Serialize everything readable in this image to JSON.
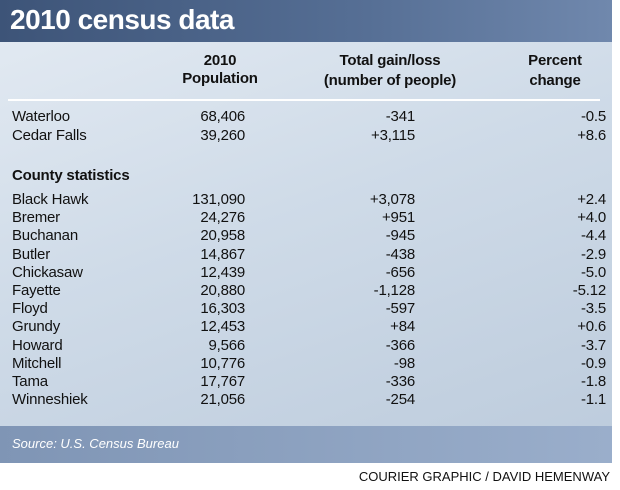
{
  "header": {
    "title": "2010 census data"
  },
  "table": {
    "columns": [
      [
        "2010",
        "Population"
      ],
      [
        "Total gain/loss",
        "(number of people)"
      ],
      [
        "Percent",
        "change"
      ]
    ],
    "city_rows": [
      [
        "Waterloo",
        "68,406",
        "-341",
        "-0.5"
      ],
      [
        "Cedar Falls",
        "39,260",
        "+3,115",
        "+8.6"
      ]
    ],
    "section_label": "County statistics",
    "county_rows": [
      [
        "Black Hawk",
        "131,090",
        "+3,078",
        "+2.4"
      ],
      [
        "Bremer",
        "24,276",
        "+951",
        "+4.0"
      ],
      [
        "Buchanan",
        "20,958",
        "-945",
        "-4.4"
      ],
      [
        "Butler",
        "14,867",
        "-438",
        "-2.9"
      ],
      [
        "Chickasaw",
        "12,439",
        "-656",
        "-5.0"
      ],
      [
        "Fayette",
        "20,880",
        "-1,128",
        "-5.12"
      ],
      [
        "Floyd",
        "16,303",
        "-597",
        "-3.5"
      ],
      [
        "Grundy",
        "12,453",
        "+84",
        "+0.6"
      ],
      [
        "Howard",
        "9,566",
        "-366",
        "-3.7"
      ],
      [
        "Mitchell",
        "10,776",
        "-98",
        "-0.9"
      ],
      [
        "Tama",
        "17,767",
        "-336",
        "-1.8"
      ],
      [
        "Winneshiek",
        "21,056",
        "-254",
        "-1.1"
      ]
    ]
  },
  "footer": {
    "source": "Source: U.S. Census Bureau",
    "credit": "COURIER GRAPHIC / DAVID HEMENWAY"
  }
}
